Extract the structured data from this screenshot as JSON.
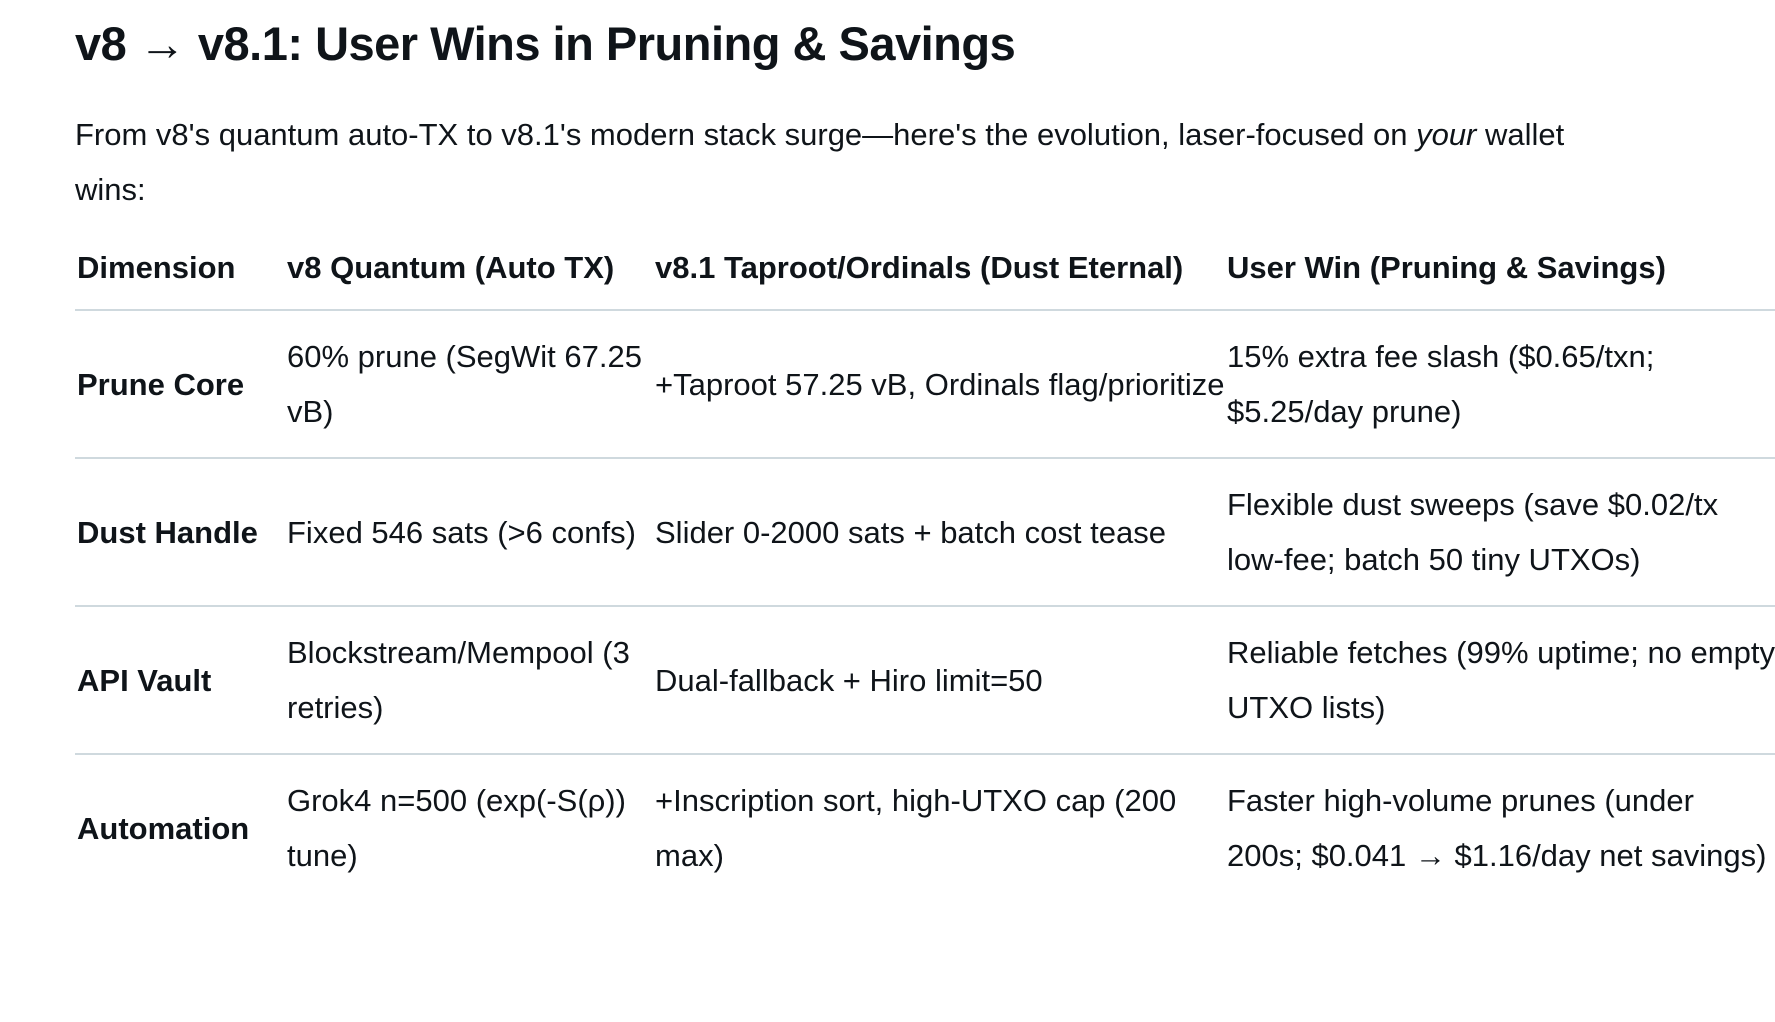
{
  "title": "v8 → v8.1: User Wins in Pruning & Savings",
  "intro": {
    "before": "From v8's quantum auto-TX to v8.1's modern stack surge—here's the evolution, laser-focused on ",
    "emphasis": "your",
    "after": " wallet wins:"
  },
  "table": {
    "headers": [
      "Dimension",
      "v8 Quantum (Auto TX)",
      "v8.1 Taproot/Ordinals (Dust Eternal)",
      "User Win (Pruning & Savings)"
    ],
    "rows": [
      {
        "dimension": "Prune Core",
        "v8": "60% prune (SegWit 67.25 vB)",
        "v81": "+Taproot 57.25 vB, Ordinals flag/prioritize",
        "win": "15% extra fee slash ($0.65/txn; $5.25/day prune)"
      },
      {
        "dimension": "Dust Handle",
        "v8": "Fixed 546 sats (>6 confs)",
        "v81": "Slider 0-2000 sats + batch cost tease",
        "win": "Flexible dust sweeps (save $0.02/tx low-fee; batch 50 tiny UTXOs)"
      },
      {
        "dimension": "API Vault",
        "v8": "Blockstream/Mempool (3 retries)",
        "v81": "Dual-fallback + Hiro limit=50",
        "win": "Reliable fetches (99% uptime; no empty UTXO lists)"
      },
      {
        "dimension": "Automation",
        "v8": "Grok4 n=500 (exp(-S(ρ)) tune)",
        "v81": "+Inscription sort, high-UTXO cap (200 max)",
        "win": "Faster high-volume prunes (under 200s; $0.041 → $1.16/day net savings)"
      }
    ]
  }
}
